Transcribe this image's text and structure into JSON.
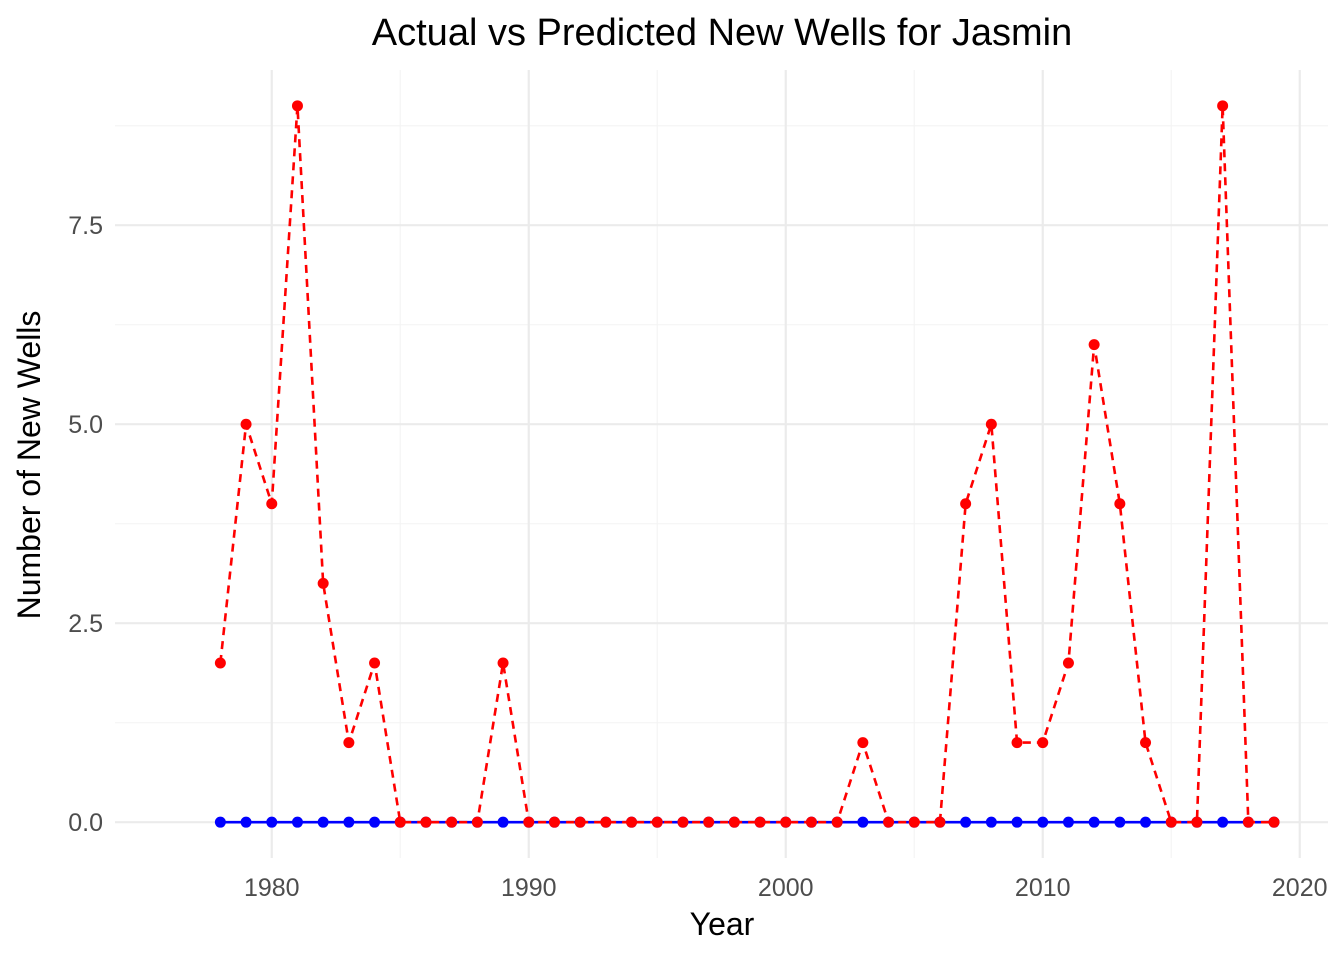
{
  "chart_data": {
    "type": "line",
    "title": "Actual vs Predicted New Wells for Jasmin",
    "xlabel": "Year",
    "ylabel": "Number of New Wells",
    "x_ticks": [
      1980,
      1990,
      2000,
      2010,
      2020
    ],
    "y_ticks": [
      0.0,
      2.5,
      5.0,
      7.5
    ],
    "x_tick_labels": [
      "1980",
      "1990",
      "2000",
      "2010",
      "2020"
    ],
    "y_tick_labels": [
      "0.0",
      "2.5",
      "5.0",
      "7.5"
    ],
    "xlim": [
      1973.9,
      2021.1
    ],
    "ylim": [
      -0.45,
      9.45
    ],
    "grid": true,
    "x": [
      1978,
      1979,
      1980,
      1981,
      1982,
      1983,
      1984,
      1985,
      1986,
      1987,
      1988,
      1989,
      1990,
      1991,
      1992,
      1993,
      1994,
      1995,
      1996,
      1997,
      1998,
      1999,
      2000,
      2001,
      2002,
      2003,
      2004,
      2005,
      2006,
      2007,
      2008,
      2009,
      2010,
      2011,
      2012,
      2013,
      2014,
      2015,
      2016,
      2017,
      2018,
      2019
    ],
    "series": [
      {
        "color": "#0000ff",
        "line_style": "solid",
        "values": [
          0,
          0,
          0,
          0,
          0,
          0,
          0,
          0,
          0,
          0,
          0,
          0,
          0,
          0,
          0,
          0,
          0,
          0,
          0,
          0,
          0,
          0,
          0,
          0,
          0,
          0,
          0,
          0,
          0,
          0,
          0,
          0,
          0,
          0,
          0,
          0,
          0,
          0,
          0,
          0,
          0,
          0
        ]
      },
      {
        "color": "#ff0000",
        "line_style": "dashed",
        "values": [
          2,
          5,
          4,
          9,
          3,
          1,
          2,
          0,
          0,
          0,
          0,
          2,
          0,
          0,
          0,
          0,
          0,
          0,
          0,
          0,
          0,
          0,
          0,
          0,
          0,
          1,
          0,
          0,
          0,
          4,
          5,
          1,
          1,
          2,
          6,
          4,
          1,
          0,
          0,
          9,
          0,
          0
        ]
      }
    ]
  }
}
